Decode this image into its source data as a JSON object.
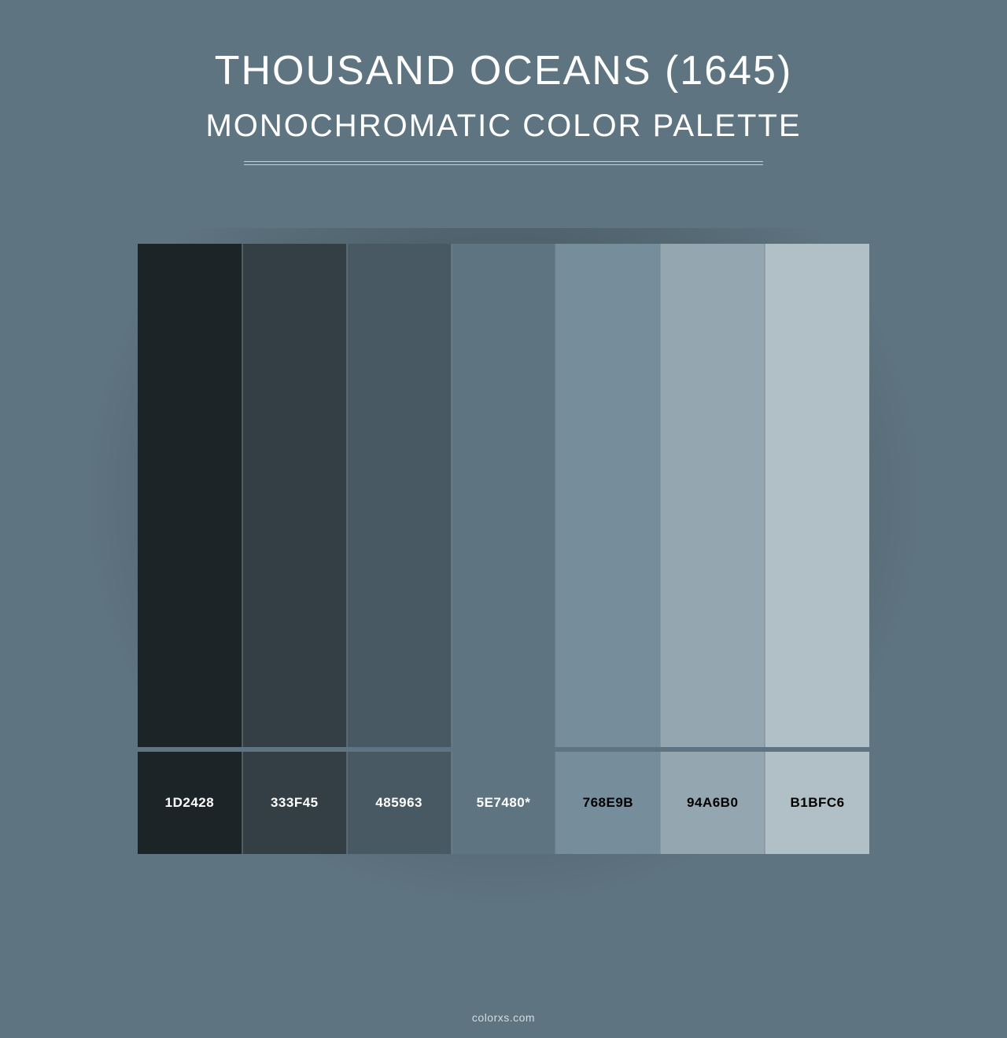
{
  "background_color": "#5e7480",
  "header": {
    "title": "THOUSAND OCEANS (1645)",
    "subtitle": "MONOCHROMATIC COLOR PALETTE",
    "title_color": "#ffffff",
    "subtitle_color": "#ffffff",
    "title_fontsize": 52,
    "subtitle_fontsize": 40,
    "divider_color": "#c7d0d6",
    "divider_width": 660
  },
  "palette": {
    "type": "swatch-row",
    "swatch_height": 640,
    "label_height": 130,
    "gap_height": 6,
    "gap_color": "#5e7480",
    "border_color": "rgba(120,135,145,0.5)",
    "label_fontsize": 17,
    "label_fontweight": 700,
    "swatches": [
      {
        "hex": "#1d2428",
        "label": "1D2428",
        "label_color": "#ffffff"
      },
      {
        "hex": "#333f45",
        "label": "333F45",
        "label_color": "#ffffff"
      },
      {
        "hex": "#485963",
        "label": "485963",
        "label_color": "#ffffff"
      },
      {
        "hex": "#5e7480",
        "label": "5E7480*",
        "label_color": "#ffffff"
      },
      {
        "hex": "#768e9b",
        "label": "768E9B",
        "label_color": "#000000"
      },
      {
        "hex": "#94a6b0",
        "label": "94A6B0",
        "label_color": "#000000"
      },
      {
        "hex": "#b1bfc6",
        "label": "B1BFC6",
        "label_color": "#000000"
      }
    ]
  },
  "credit": {
    "text": "colorxs.com",
    "color": "#d6dde2",
    "fontsize": 14
  }
}
